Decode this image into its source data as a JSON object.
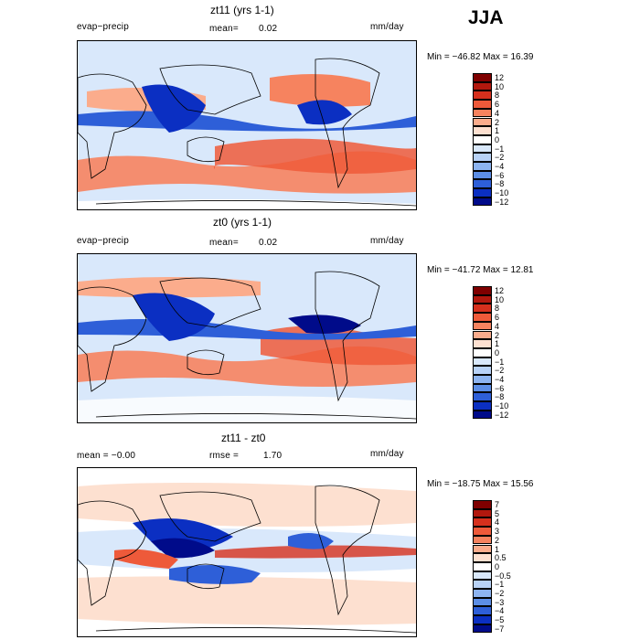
{
  "season": "JJA",
  "panels": [
    {
      "title": "zt11 (yrs 1-1)",
      "left_label": "evap−precip",
      "mean_label": "mean=",
      "mean_value": "0.02",
      "units": "mm/day",
      "minmax": "Min = −46.82 Max =   16.39",
      "colorbar": {
        "colors": [
          "#7f0000",
          "#b2180e",
          "#d6301d",
          "#ee5a3a",
          "#f6835f",
          "#fbac8c",
          "#fde0d0",
          "#ffffff",
          "#d9e8fb",
          "#b8d2f7",
          "#8db4f0",
          "#5c8ee6",
          "#2e5fd8",
          "#0b2fc2",
          "#000b8a"
        ],
        "ticks": [
          "12",
          "10",
          "8",
          "6",
          "4",
          "2",
          "1",
          "0",
          "−1",
          "−2",
          "−4",
          "−6",
          "−8",
          "−10",
          "−12"
        ]
      }
    },
    {
      "title": "zt0 (yrs 1-1)",
      "left_label": "evap−precip",
      "mean_label": "mean=",
      "mean_value": "0.02",
      "units": "mm/day",
      "minmax": "Min = −41.72 Max =   12.81",
      "colorbar": {
        "colors": [
          "#7f0000",
          "#b2180e",
          "#d6301d",
          "#ee5a3a",
          "#f6835f",
          "#fbac8c",
          "#fde0d0",
          "#ffffff",
          "#d9e8fb",
          "#b8d2f7",
          "#8db4f0",
          "#5c8ee6",
          "#2e5fd8",
          "#0b2fc2",
          "#000b8a"
        ],
        "ticks": [
          "12",
          "10",
          "8",
          "6",
          "4",
          "2",
          "1",
          "0",
          "−1",
          "−2",
          "−4",
          "−6",
          "−8",
          "−10",
          "−12"
        ]
      }
    },
    {
      "title": "zt11 - zt0",
      "left_label": "mean =    −0.00",
      "mean_label": "rmse =",
      "mean_value": "1.70",
      "units": "mm/day",
      "minmax": "Min = −18.75 Max =   15.56",
      "colorbar": {
        "colors": [
          "#7f0000",
          "#b2180e",
          "#d6301d",
          "#ee5a3a",
          "#f6835f",
          "#fbac8c",
          "#fde0d0",
          "#ffffff",
          "#d9e8fb",
          "#b8d2f7",
          "#8db4f0",
          "#5c8ee6",
          "#2e5fd8",
          "#0b2fc2",
          "#000b8a"
        ],
        "ticks": [
          "7",
          "5",
          "4",
          "3",
          "2",
          "1",
          "0.5",
          "0",
          "−0.5",
          "−1",
          "−2",
          "−3",
          "−4",
          "−5",
          "−7"
        ]
      }
    }
  ]
}
